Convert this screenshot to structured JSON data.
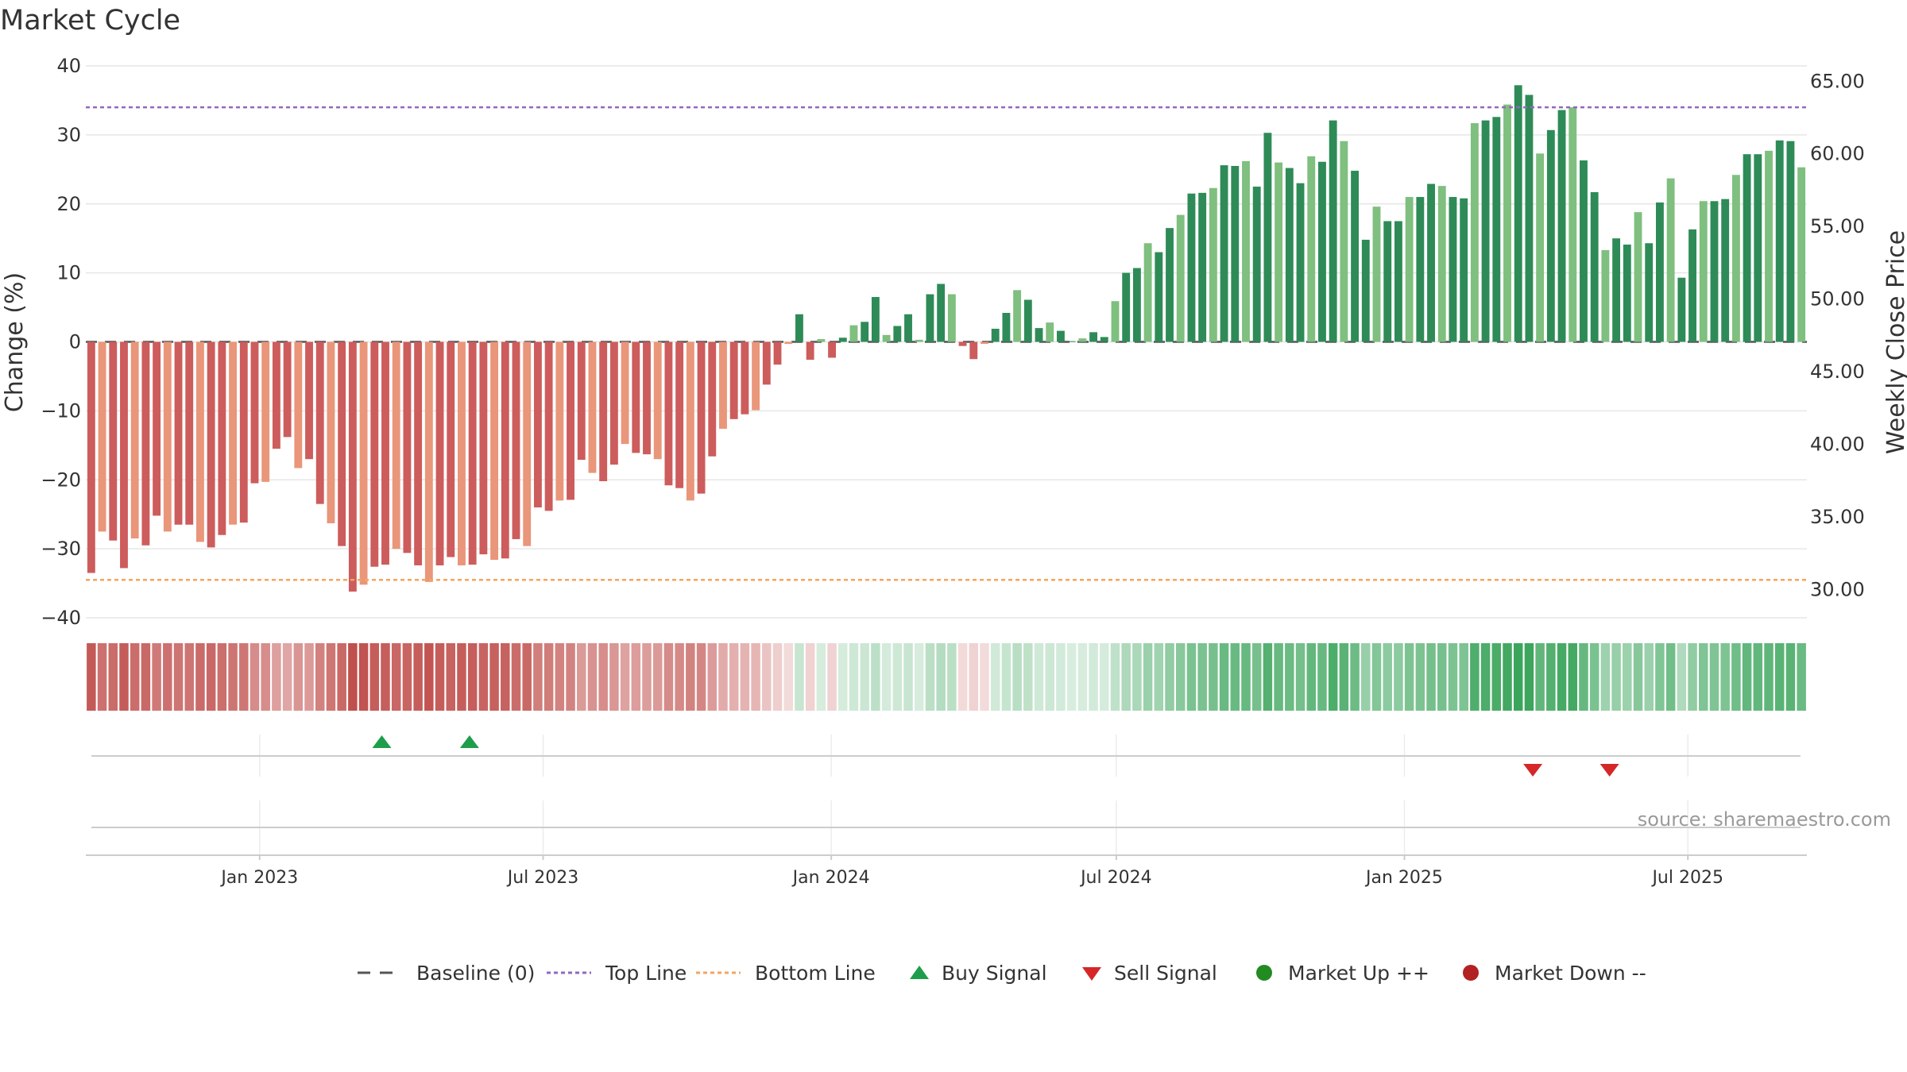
{
  "chart_data": {
    "type": "bar",
    "title": "Market Cycle",
    "ylabel_left": "Change (%)",
    "ylabel_right": "Weekly Close Price",
    "ylim_left": [
      -40,
      40
    ],
    "ylim_right": [
      28,
      66
    ],
    "yticks_left": [
      "40",
      "30",
      "20",
      "10",
      "0",
      "−10",
      "−20",
      "−30",
      "−40"
    ],
    "yticks_right": [
      "65.00",
      "60.00",
      "55.00",
      "50.00",
      "45.00",
      "40.00",
      "35.00",
      "30.00"
    ],
    "x_start": "2022-09-12",
    "x_end": "2025-09-15",
    "x_tick_labels": [
      {
        "date": "2023-01-01",
        "label": "Jan 2023"
      },
      {
        "date": "2023-07-01",
        "label": "Jul 2023"
      },
      {
        "date": "2024-01-01",
        "label": "Jan 2024"
      },
      {
        "date": "2024-07-01",
        "label": "Jul 2024"
      },
      {
        "date": "2025-01-01",
        "label": "Jan 2025"
      },
      {
        "date": "2025-07-01",
        "label": "Jul 2025"
      }
    ],
    "top_line": 34,
    "bottom_line": -34.5,
    "baseline": 0,
    "values": [
      -33.5,
      -27.5,
      -28.8,
      -32.8,
      -28.5,
      -29.5,
      -25.2,
      -27.5,
      -26.5,
      -26.5,
      -29,
      -29.8,
      -28,
      -26.5,
      -26.2,
      -20.5,
      -20.3,
      -15.5,
      -13.8,
      -18.3,
      -17,
      -23.5,
      -26.3,
      -29.6,
      -36.2,
      -35.2,
      -32.6,
      -32.3,
      -30,
      -30.6,
      -32.4,
      -34.8,
      -32.4,
      -31.2,
      -32.4,
      -32.3,
      -30.8,
      -31.6,
      -31.4,
      -28.6,
      -29.6,
      -24,
      -24.5,
      -23,
      -22.9,
      -17.1,
      -19,
      -20.2,
      -17.8,
      -14.8,
      -16.1,
      -16.3,
      -17,
      -20.8,
      -21.2,
      -23,
      -22,
      -16.6,
      -12.6,
      -11.2,
      -10.5,
      -9.9,
      -6.2,
      -3.3,
      -0.3,
      4,
      -2.6,
      0.4,
      -2.3,
      0.6,
      2.4,
      2.9,
      6.5,
      1,
      2.3,
      4,
      0.3,
      6.9,
      8.4,
      6.9,
      -0.6,
      -2.5,
      -0.3,
      1.9,
      4.2,
      7.5,
      6.1,
      2,
      2.8,
      1.6,
      0.1,
      0.5,
      1.4,
      0.7,
      5.9,
      10,
      10.7,
      14.3,
      13,
      16.5,
      18.4,
      21.5,
      21.6,
      22.3,
      25.6,
      25.5,
      26.2,
      22.5,
      30.3,
      26,
      25.2,
      23,
      26.9,
      26.1,
      32.1,
      29.1,
      24.8,
      14.8,
      19.6,
      17.5,
      17.5,
      21,
      21,
      22.9,
      22.6,
      21,
      20.8,
      31.7,
      32.1,
      32.6,
      34.4,
      37.2,
      35.8,
      27.3,
      30.7,
      33.6,
      34,
      26.3,
      21.7,
      13.3,
      15,
      14.1,
      18.8,
      14.3,
      20.2,
      23.7,
      9.3,
      16.3,
      20.4,
      20.4,
      20.7,
      24.2,
      27.2,
      27.2,
      27.7,
      29.2,
      29.1,
      25.3
    ],
    "signals": [
      {
        "type": "buy",
        "date": "2023-03-20"
      },
      {
        "type": "buy",
        "date": "2023-05-15"
      },
      {
        "type": "sell",
        "date": "2025-03-24"
      },
      {
        "type": "sell",
        "date": "2025-05-12"
      }
    ],
    "legend": [
      {
        "label": "Baseline (0)",
        "marker": "dash"
      },
      {
        "label": "Top Line",
        "marker": "dot"
      },
      {
        "label": "Bottom Line",
        "marker": "dot"
      },
      {
        "label": "Buy Signal",
        "marker": "triangle-up"
      },
      {
        "label": "Sell Signal",
        "marker": "triangle-down"
      },
      {
        "label": "Market Up ++",
        "marker": "circle"
      },
      {
        "label": "Market Down --",
        "marker": "circle"
      }
    ],
    "colors": {
      "strong_up": "#2e8b57",
      "weak_up": "#7fbf7f",
      "strong_down": "#cd5c5c",
      "weak_down": "#e9967a",
      "top_line": "#9467bd",
      "bottom_line": "#f4a460",
      "baseline": "#555555",
      "buy": "#1e9e4a",
      "sell": "#d62728",
      "market_up": "#228b22",
      "market_down": "#b22222",
      "heat_up": "#3ca55c",
      "heat_down": "#c0504d"
    },
    "source": "source: sharemaestro.com"
  }
}
